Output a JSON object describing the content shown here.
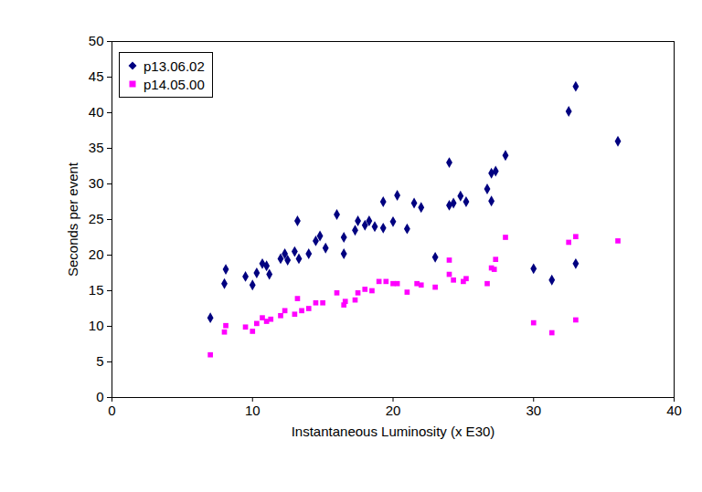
{
  "chart_data": {
    "type": "scatter",
    "xlabel": "Instantaneous Luminosity (x E30)",
    "ylabel": "Seconds per event",
    "xlim": [
      0,
      40
    ],
    "xticks": [
      0,
      10,
      20,
      30,
      40
    ],
    "ylim": [
      0,
      50
    ],
    "yticks": [
      0,
      5,
      10,
      15,
      20,
      25,
      30,
      35,
      40,
      45,
      50
    ],
    "grid": false,
    "legend": "top-left",
    "series": [
      {
        "name": "p13.06.02",
        "color": "#000080",
        "marker": "diamond",
        "x": [
          7,
          8,
          8.1,
          9.5,
          10,
          10.3,
          10.7,
          11,
          11.2,
          12,
          12.3,
          12.5,
          13,
          13.2,
          13.3,
          14,
          14.5,
          14.8,
          15.2,
          16,
          16.5,
          16.5,
          17.3,
          17.5,
          18,
          18.3,
          18.7,
          19.3,
          19.3,
          20,
          20.3,
          21,
          21.5,
          22,
          23,
          24,
          24,
          24.3,
          24.8,
          25.2,
          26.7,
          27,
          27,
          27.3,
          28,
          30,
          31.3,
          32.5,
          33,
          33,
          36
        ],
        "values": [
          11.2,
          16,
          18,
          17,
          15.8,
          17.5,
          18.8,
          18.5,
          17.3,
          19.5,
          20.2,
          19.3,
          20.5,
          24.8,
          19.5,
          20.2,
          22,
          22.7,
          21,
          25.7,
          20.2,
          22.5,
          23.5,
          24.8,
          24.2,
          24.8,
          24,
          23.8,
          27.5,
          24.7,
          28.4,
          23.7,
          27.3,
          26.7,
          19.7,
          33,
          27,
          27.3,
          28.3,
          27.5,
          29.3,
          31.5,
          27.6,
          31.8,
          34,
          18.1,
          16.5,
          40.2,
          43.7,
          18.8,
          36
        ]
      },
      {
        "name": "p14.05.00",
        "color": "#ff00ff",
        "marker": "square",
        "x": [
          7,
          8,
          8.1,
          9.5,
          10,
          10.3,
          10.7,
          11,
          11.3,
          12,
          12.3,
          13,
          13.2,
          13.5,
          14,
          14.5,
          15,
          16,
          16.5,
          16.6,
          17.3,
          17.5,
          18,
          18.5,
          19,
          19.5,
          20,
          20.3,
          21,
          21.7,
          22,
          23,
          24,
          24,
          24.3,
          25,
          25.2,
          26.7,
          27,
          27.2,
          27.3,
          28,
          30,
          31.3,
          32.5,
          33,
          33,
          36
        ],
        "values": [
          6,
          9.2,
          10.1,
          9.9,
          9.3,
          10.4,
          11.2,
          10.7,
          11,
          11.5,
          12.2,
          11.7,
          13.9,
          12.2,
          12.5,
          13.3,
          13.3,
          14.7,
          13,
          13.5,
          13.7,
          14.7,
          15.2,
          15,
          16.3,
          16.3,
          16,
          16,
          14.8,
          16,
          15.8,
          15.5,
          19.3,
          17.3,
          16.5,
          16.3,
          16.7,
          16,
          18.2,
          18,
          19.4,
          22.5,
          10.5,
          9.1,
          21.8,
          22.6,
          10.9,
          22
        ]
      }
    ]
  }
}
